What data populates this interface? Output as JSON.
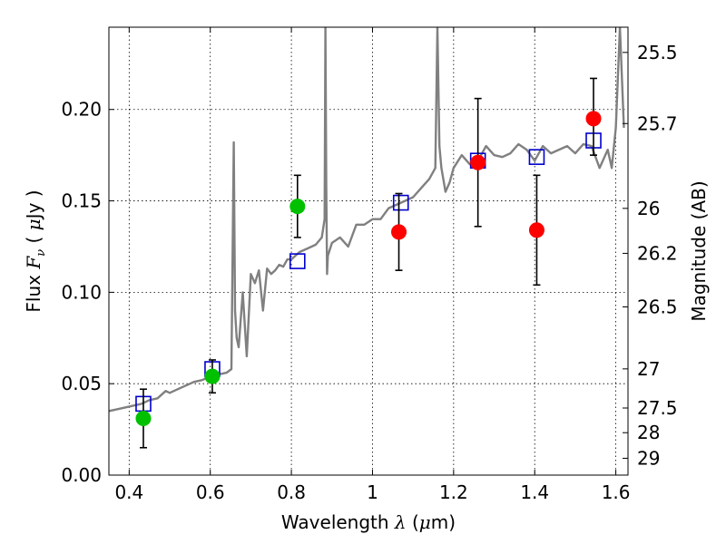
{
  "chart_data": {
    "type": "scatter",
    "xlabel": "Wavelength  λ (μm)",
    "ylabel": "Flux  F_ν  ( μJy )",
    "ylabel_right": "Magnitude (AB)",
    "xlim": [
      0.35,
      1.63
    ],
    "ylim": [
      0.0,
      0.245
    ],
    "grid": true,
    "x_ticks": [
      0.4,
      0.6,
      0.8,
      1.0,
      1.2,
      1.4,
      1.6
    ],
    "x_tick_labels": [
      "0.4",
      "0.6",
      "0.8",
      "1",
      "1.2",
      "1.4",
      "1.6"
    ],
    "y_ticks": [
      0.0,
      0.05,
      0.1,
      0.15,
      0.2
    ],
    "y_tick_labels": [
      "0.00",
      "0.05",
      "0.10",
      "0.15",
      "0.20"
    ],
    "right_ticks": [
      {
        "label": "25.5",
        "flux": 0.2312
      },
      {
        "label": "25.7",
        "flux": 0.1923
      },
      {
        "label": "26",
        "flux": 0.1459
      },
      {
        "label": "26.2",
        "flux": 0.1213
      },
      {
        "label": "26.5",
        "flux": 0.092
      },
      {
        "label": "27",
        "flux": 0.0581
      },
      {
        "label": "27.5",
        "flux": 0.0367
      },
      {
        "label": "28",
        "flux": 0.0232
      },
      {
        "label": "29",
        "flux": 0.0092
      }
    ],
    "series": [
      {
        "name": "model spectrum",
        "style": "line",
        "color": "#808080",
        "x": [
          0.35,
          0.37,
          0.39,
          0.41,
          0.43,
          0.45,
          0.47,
          0.49,
          0.5,
          0.52,
          0.54,
          0.56,
          0.58,
          0.6,
          0.62,
          0.64,
          0.652,
          0.655,
          0.658,
          0.661,
          0.665,
          0.67,
          0.68,
          0.69,
          0.7,
          0.71,
          0.72,
          0.73,
          0.74,
          0.75,
          0.76,
          0.77,
          0.78,
          0.79,
          0.8,
          0.81,
          0.82,
          0.84,
          0.86,
          0.875,
          0.882,
          0.884,
          0.886,
          0.888,
          0.89,
          0.9,
          0.92,
          0.94,
          0.96,
          0.98,
          1.0,
          1.02,
          1.04,
          1.06,
          1.08,
          1.1,
          1.12,
          1.14,
          1.155,
          1.16,
          1.165,
          1.17,
          1.18,
          1.19,
          1.2,
          1.22,
          1.24,
          1.26,
          1.28,
          1.3,
          1.32,
          1.34,
          1.36,
          1.38,
          1.4,
          1.42,
          1.44,
          1.46,
          1.48,
          1.5,
          1.52,
          1.54,
          1.56,
          1.58,
          1.59,
          1.6,
          1.61,
          1.62
        ],
        "y": [
          0.035,
          0.036,
          0.037,
          0.038,
          0.039,
          0.041,
          0.042,
          0.046,
          0.045,
          0.047,
          0.049,
          0.051,
          0.052,
          0.054,
          0.055,
          0.056,
          0.058,
          0.12,
          0.182,
          0.09,
          0.075,
          0.07,
          0.1,
          0.065,
          0.11,
          0.105,
          0.112,
          0.09,
          0.113,
          0.11,
          0.112,
          0.115,
          0.114,
          0.118,
          0.118,
          0.12,
          0.122,
          0.124,
          0.126,
          0.13,
          0.14,
          0.245,
          0.16,
          0.11,
          0.12,
          0.127,
          0.13,
          0.125,
          0.137,
          0.137,
          0.14,
          0.14,
          0.146,
          0.148,
          0.15,
          0.152,
          0.157,
          0.162,
          0.168,
          0.245,
          0.18,
          0.168,
          0.155,
          0.16,
          0.168,
          0.175,
          0.17,
          0.172,
          0.18,
          0.175,
          0.174,
          0.176,
          0.181,
          0.178,
          0.172,
          0.18,
          0.176,
          0.178,
          0.18,
          0.176,
          0.181,
          0.18,
          0.168,
          0.178,
          0.168,
          0.19,
          0.245,
          0.19
        ]
      },
      {
        "name": "green points",
        "style": "circle",
        "color": "#00c000",
        "points": [
          {
            "x": 0.435,
            "y": 0.031,
            "err_lo": 0.015,
            "err_hi": 0.047
          },
          {
            "x": 0.605,
            "y": 0.054,
            "err_lo": 0.045,
            "err_hi": 0.063
          },
          {
            "x": 0.815,
            "y": 0.147,
            "err_lo": 0.13,
            "err_hi": 0.164
          }
        ]
      },
      {
        "name": "red points",
        "style": "circle",
        "color": "#ff0000",
        "points": [
          {
            "x": 1.065,
            "y": 0.133,
            "err_lo": 0.112,
            "err_hi": 0.154
          },
          {
            "x": 1.26,
            "y": 0.171,
            "err_lo": 0.136,
            "err_hi": 0.206
          },
          {
            "x": 1.405,
            "y": 0.134,
            "err_lo": 0.104,
            "err_hi": 0.164
          },
          {
            "x": 1.545,
            "y": 0.195,
            "err_lo": 0.175,
            "err_hi": 0.217
          }
        ]
      },
      {
        "name": "model photometry",
        "style": "square",
        "color": "#0000cc",
        "points": [
          {
            "x": 0.435,
            "y": 0.039
          },
          {
            "x": 0.605,
            "y": 0.058
          },
          {
            "x": 0.815,
            "y": 0.117
          },
          {
            "x": 1.07,
            "y": 0.149
          },
          {
            "x": 1.26,
            "y": 0.172
          },
          {
            "x": 1.405,
            "y": 0.174
          },
          {
            "x": 1.545,
            "y": 0.183
          }
        ]
      }
    ]
  }
}
